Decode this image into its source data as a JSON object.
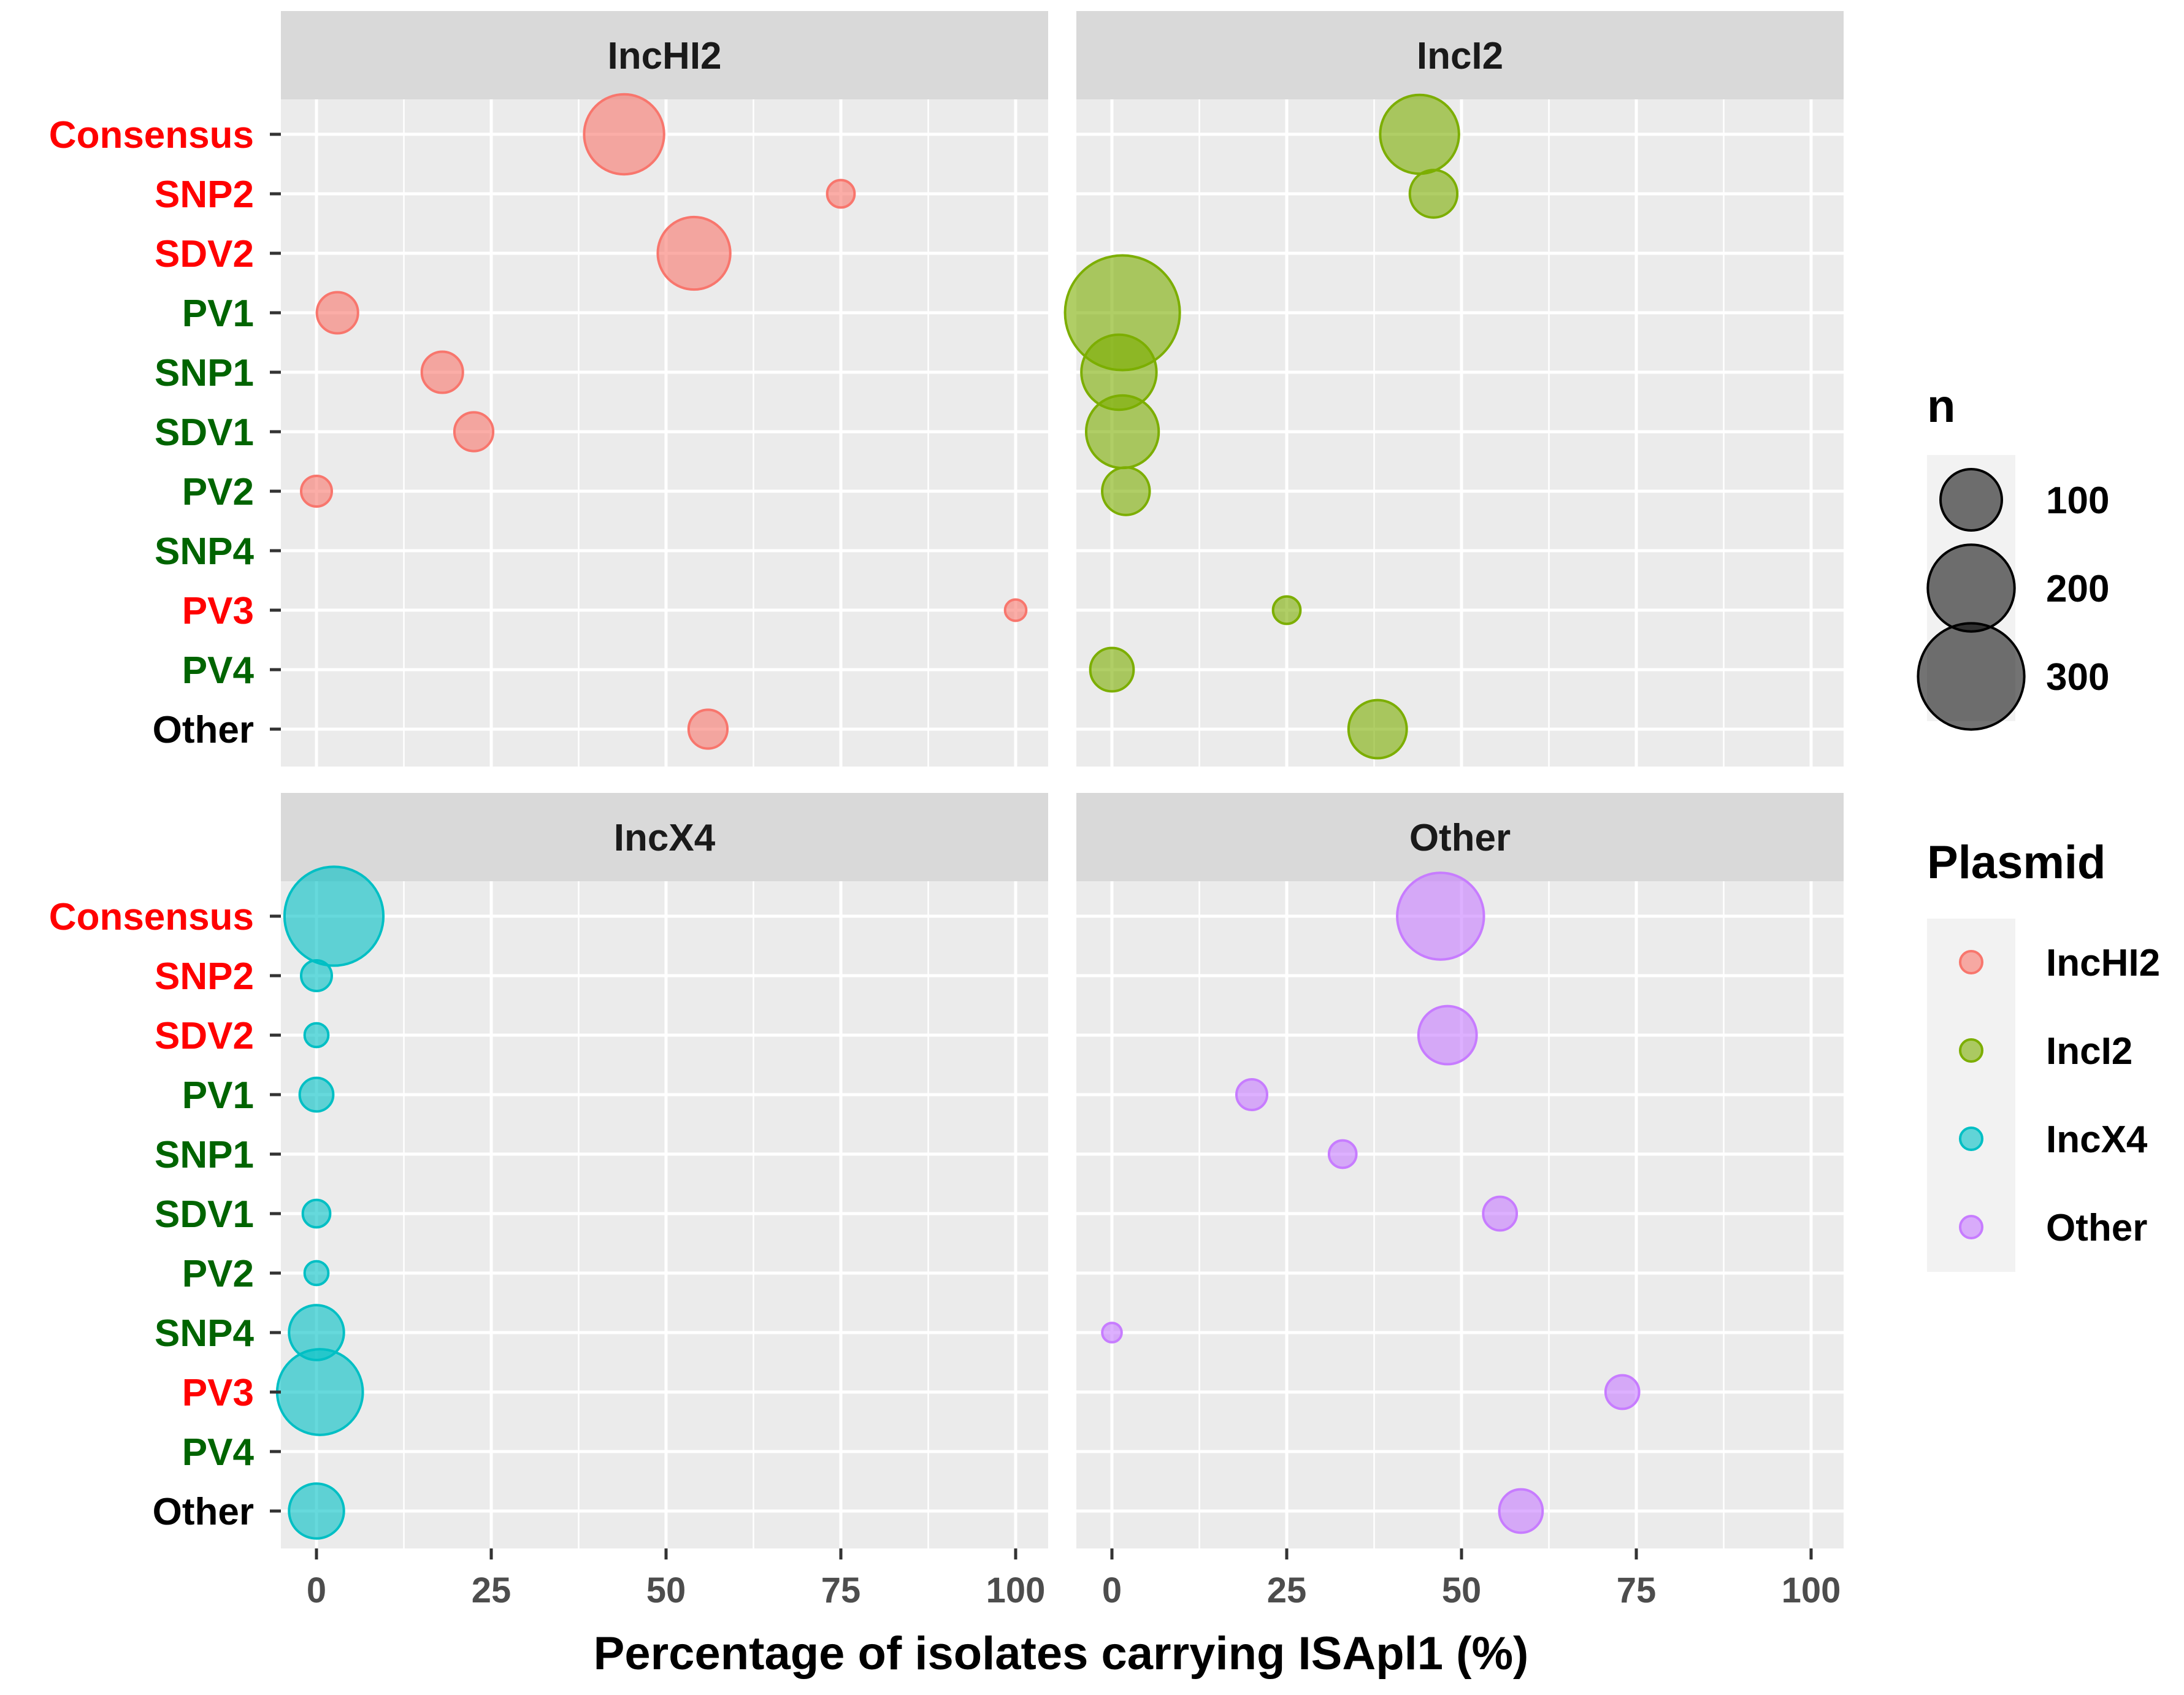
{
  "chart_data": {
    "type": "scatter",
    "subtype": "faceted-bubble",
    "xlabel": "Percentage of isolates carrying ISApl1 (%)",
    "ylabel": "",
    "xlim": [
      0,
      100
    ],
    "x_ticks": [
      0,
      25,
      50,
      75,
      100
    ],
    "categories": [
      "Consensus",
      "SNP2",
      "SDV2",
      "PV1",
      "SNP1",
      "SDV1",
      "PV2",
      "SNP4",
      "PV3",
      "PV4",
      "Other"
    ],
    "category_colors": {
      "Consensus": "#ff0000",
      "SNP2": "#ff0000",
      "SDV2": "#ff0000",
      "PV1": "#006400",
      "SNP1": "#006400",
      "SDV1": "#006400",
      "PV2": "#006400",
      "SNP4": "#006400",
      "PV3": "#ff0000",
      "PV4": "#006400",
      "Other": "#000000"
    },
    "size_legend": {
      "title": "n",
      "values": [
        100,
        200,
        300
      ],
      "max_n": 400
    },
    "color_legend": {
      "title": "Plasmid",
      "entries": [
        "IncHI2",
        "IncI2",
        "IncX4",
        "Other"
      ]
    },
    "colors": {
      "IncHI2": "#f8766d",
      "IncI2": "#7cae00",
      "IncX4": "#00bfc4",
      "Other": "#c77cff"
    },
    "panels": [
      {
        "title": "IncHI2",
        "plasmid": "IncHI2",
        "points": [
          {
            "category": "Consensus",
            "x": 44,
            "n": 170
          },
          {
            "category": "SNP2",
            "x": 75,
            "n": 20
          },
          {
            "category": "SDV2",
            "x": 54,
            "n": 140
          },
          {
            "category": "PV1",
            "x": 3,
            "n": 45
          },
          {
            "category": "SNP1",
            "x": 18,
            "n": 45
          },
          {
            "category": "SDV1",
            "x": 22.5,
            "n": 40
          },
          {
            "category": "PV2",
            "x": 0,
            "n": 25
          },
          {
            "category": "PV3",
            "x": 100,
            "n": 12
          },
          {
            "category": "Other",
            "x": 56,
            "n": 40
          }
        ]
      },
      {
        "title": "IncI2",
        "plasmid": "IncI2",
        "points": [
          {
            "category": "Consensus",
            "x": 44,
            "n": 165
          },
          {
            "category": "SNP2",
            "x": 46,
            "n": 60
          },
          {
            "category": "PV1",
            "x": 1.5,
            "n": 350
          },
          {
            "category": "SNP1",
            "x": 1,
            "n": 150
          },
          {
            "category": "SDV1",
            "x": 1.5,
            "n": 140
          },
          {
            "category": "PV2",
            "x": 2,
            "n": 60
          },
          {
            "category": "PV3",
            "x": 25,
            "n": 20
          },
          {
            "category": "PV4",
            "x": 0,
            "n": 50
          },
          {
            "category": "Other",
            "x": 38,
            "n": 90
          }
        ]
      },
      {
        "title": "IncX4",
        "plasmid": "IncX4",
        "points": [
          {
            "category": "Consensus",
            "x": 2.5,
            "n": 260
          },
          {
            "category": "SNP2",
            "x": 0,
            "n": 25
          },
          {
            "category": "SDV2",
            "x": 0,
            "n": 15
          },
          {
            "category": "PV1",
            "x": 0,
            "n": 30
          },
          {
            "category": "SNP1",
            "x": 0,
            "n": 0
          },
          {
            "category": "SDV1",
            "x": 0,
            "n": 20
          },
          {
            "category": "PV2",
            "x": 0,
            "n": 15
          },
          {
            "category": "SNP4",
            "x": 0,
            "n": 80
          },
          {
            "category": "PV3",
            "x": 0.5,
            "n": 195
          },
          {
            "category": "Other",
            "x": 0,
            "n": 80
          }
        ]
      },
      {
        "title": "Other",
        "plasmid": "Other",
        "points": [
          {
            "category": "Consensus",
            "x": 47,
            "n": 200
          },
          {
            "category": "SDV2",
            "x": 48,
            "n": 90
          },
          {
            "category": "PV1",
            "x": 20,
            "n": 25
          },
          {
            "category": "SNP1",
            "x": 33,
            "n": 20
          },
          {
            "category": "SDV1",
            "x": 55.5,
            "n": 30
          },
          {
            "category": "SNP4",
            "x": 0,
            "n": 10
          },
          {
            "category": "PV3",
            "x": 73,
            "n": 30
          },
          {
            "category": "Other",
            "x": 58.5,
            "n": 50
          }
        ]
      }
    ]
  }
}
